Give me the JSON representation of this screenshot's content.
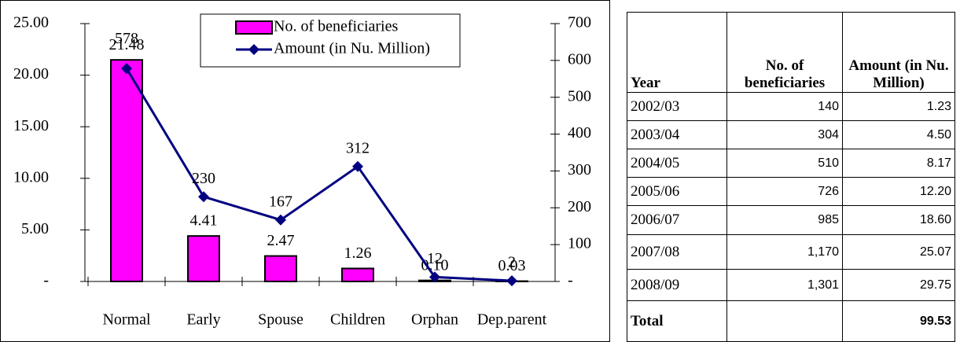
{
  "chart_data": {
    "type": "bar",
    "categories": [
      "Normal",
      "Early",
      "Spouse",
      "Children",
      "Orphan",
      "Dep.parent"
    ],
    "series": [
      {
        "name": "No. of beneficiaries",
        "type": "bar",
        "color": "#ff00ff",
        "values": [
          21.48,
          4.41,
          2.47,
          1.26,
          0.1,
          0.03
        ],
        "value_labels": [
          "21.48",
          "4.41",
          "2.47",
          "1.26",
          "0.10",
          "0.03"
        ]
      },
      {
        "name": "Amount (in Nu. Million)",
        "type": "line",
        "color": "#000080",
        "axis": "y2",
        "values": [
          578,
          230,
          167,
          312,
          12,
          2
        ]
      }
    ],
    "ylim": [
      0,
      25
    ],
    "yticks": [
      {
        "value": 0,
        "label": "-"
      },
      {
        "value": 5,
        "label": "5.00"
      },
      {
        "value": 10,
        "label": "10.00"
      },
      {
        "value": 15,
        "label": "15.00"
      },
      {
        "value": 20,
        "label": "20.00"
      },
      {
        "value": 25,
        "label": "25.00"
      }
    ],
    "y2lim": [
      0,
      700
    ],
    "y2ticks": [
      {
        "value": 0,
        "label": "-"
      },
      100,
      200,
      300,
      400,
      500,
      600,
      700
    ],
    "legend": "top"
  },
  "table": {
    "header": [
      "Year",
      "No. of beneficiaries",
      "Amount (in Nu. Million)"
    ],
    "rows": [
      [
        "2002/03",
        "140",
        "1.23"
      ],
      [
        "2003/04",
        "304",
        "4.50"
      ],
      [
        "2004/05",
        "510",
        "8.17"
      ],
      [
        "2005/06",
        "726",
        "12.20"
      ],
      [
        "2006/07",
        "985",
        "18.60"
      ],
      [
        "2007/08",
        "1,170",
        "25.07"
      ],
      [
        "2008/09",
        "1,301",
        "29.75"
      ]
    ],
    "total": {
      "label": "Total",
      "amount": "99.53"
    }
  }
}
